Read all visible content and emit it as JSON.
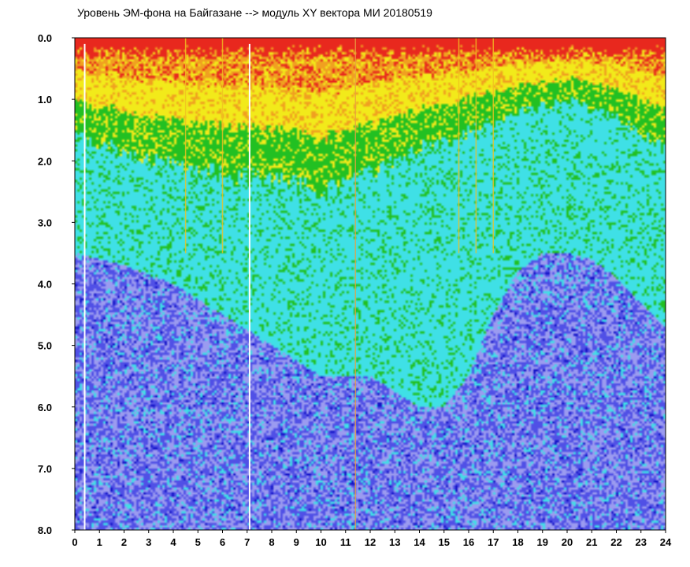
{
  "chart_data": {
    "type": "heatmap",
    "title": "Уровень ЭМ-фона на Байгазане   -->  модуль XY вектора МИ   20180519",
    "xlabel": "",
    "ylabel": "",
    "xlim": [
      0,
      24
    ],
    "ylim": [
      0,
      8
    ],
    "y_inverted": true,
    "x_ticks": [
      "0",
      "1",
      "2",
      "3",
      "4",
      "5",
      "6",
      "7",
      "8",
      "9",
      "10",
      "11",
      "12",
      "13",
      "14",
      "15",
      "16",
      "17",
      "18",
      "19",
      "20",
      "21",
      "22",
      "23",
      "24"
    ],
    "y_ticks": [
      "0.0",
      "1.0",
      "2.0",
      "3.0",
      "4.0",
      "5.0",
      "6.0",
      "7.0",
      "8.0"
    ],
    "grid": false,
    "colorscale": [
      "#1414c8",
      "#5050e6",
      "#9b9bf0",
      "#3fe0e6",
      "#22c022",
      "#f2ea1a",
      "#f0a020",
      "#e8281e"
    ],
    "gaps_hours": [
      0.4,
      7.1
    ],
    "bright_streak_hours": [
      4.5,
      6.0,
      11.4,
      15.6,
      16.3,
      17.0
    ],
    "intensity_profile": {
      "hours": [
        0,
        2,
        4,
        6,
        8,
        10,
        11,
        12,
        14,
        15,
        16,
        17,
        18,
        19,
        20,
        21,
        22,
        23,
        24
      ],
      "green_depth": [
        1.6,
        1.8,
        2.1,
        2.2,
        2.3,
        2.5,
        2.4,
        2.2,
        1.8,
        1.7,
        1.5,
        1.4,
        1.2,
        1.1,
        1.0,
        1.1,
        1.3,
        1.6,
        1.8
      ],
      "dark_blue_from_depth": [
        3.5,
        3.7,
        4.0,
        4.5,
        5.0,
        5.5,
        5.5,
        5.5,
        6.0,
        6.0,
        5.5,
        4.5,
        3.8,
        3.5,
        3.5,
        3.6,
        3.9,
        4.3,
        4.7
      ]
    }
  }
}
